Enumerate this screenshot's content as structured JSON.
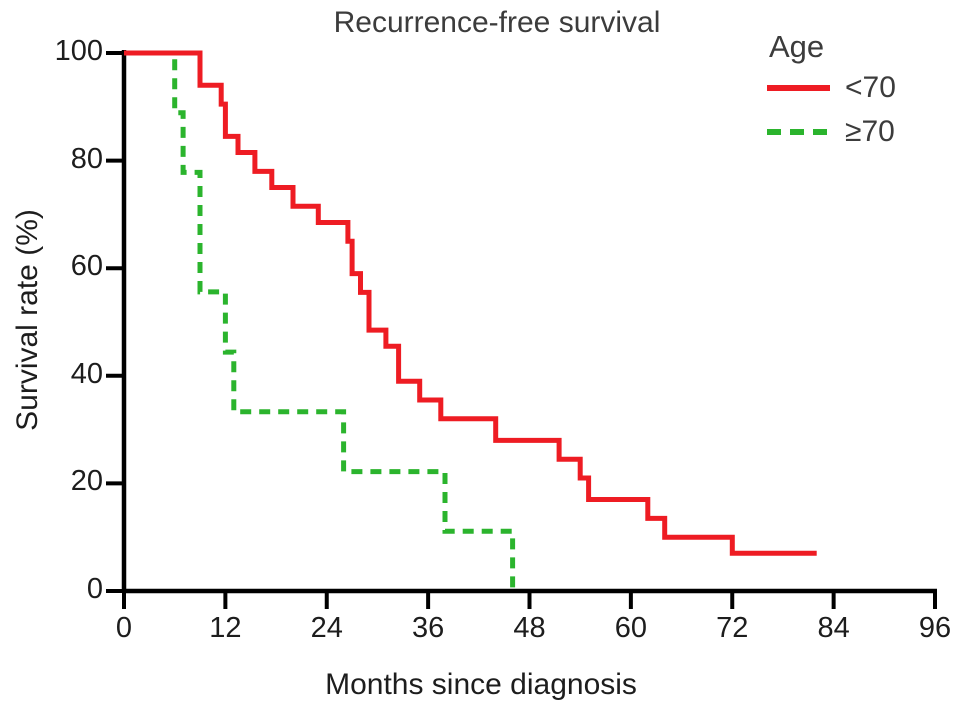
{
  "title": "Recurrence-free survival",
  "x_axis": {
    "label": "Months since diagnosis",
    "ticks": [
      0,
      12,
      24,
      36,
      48,
      60,
      72,
      84,
      96
    ],
    "min": 0,
    "max": 96
  },
  "y_axis": {
    "label": "Survival rate (%)",
    "ticks": [
      0,
      20,
      40,
      60,
      80,
      100
    ],
    "min": 0,
    "max": 100
  },
  "legend": {
    "title": "Age",
    "entries": [
      {
        "label": "<70",
        "color": "#ee1c23",
        "line_style": "solid"
      },
      {
        "label": "≥70",
        "color": "#2bb42d",
        "line_style": "dashed"
      }
    ]
  },
  "colors": {
    "axis": "#000000",
    "background": "#ffffff",
    "under70": "#ee1c23",
    "over70": "#2bb42d"
  },
  "chart_data": {
    "type": "line",
    "subtype": "kaplan-meier-step",
    "title": "Recurrence-free survival",
    "xlabel": "Months since diagnosis",
    "ylabel": "Survival rate (%)",
    "xlim": [
      0,
      96
    ],
    "ylim": [
      0,
      100
    ],
    "x_ticks": [
      0,
      12,
      24,
      36,
      48,
      60,
      72,
      84,
      96
    ],
    "y_ticks": [
      0,
      20,
      40,
      60,
      80,
      100
    ],
    "grid": false,
    "legend_position": "top-right",
    "legend_title": "Age",
    "series": [
      {
        "name": "<70",
        "color": "#ee1c23",
        "dash": "solid",
        "points": [
          [
            0,
            100
          ],
          [
            9,
            100
          ],
          [
            9,
            94
          ],
          [
            11.5,
            94
          ],
          [
            11.5,
            90.5
          ],
          [
            12,
            90.5
          ],
          [
            12,
            84.5
          ],
          [
            13.5,
            84.5
          ],
          [
            13.5,
            81.5
          ],
          [
            15.5,
            81.5
          ],
          [
            15.5,
            78
          ],
          [
            17.5,
            78
          ],
          [
            17.5,
            75
          ],
          [
            20,
            75
          ],
          [
            20,
            71.5
          ],
          [
            23,
            71.5
          ],
          [
            23,
            68.5
          ],
          [
            26.5,
            68.5
          ],
          [
            26.5,
            65
          ],
          [
            27,
            65
          ],
          [
            27,
            59
          ],
          [
            28,
            59
          ],
          [
            28,
            55.5
          ],
          [
            29,
            55.5
          ],
          [
            29,
            48.5
          ],
          [
            31,
            48.5
          ],
          [
            31,
            45.5
          ],
          [
            32.5,
            45.5
          ],
          [
            32.5,
            39
          ],
          [
            35,
            39
          ],
          [
            35,
            35.5
          ],
          [
            37.5,
            35.5
          ],
          [
            37.5,
            32
          ],
          [
            44,
            32
          ],
          [
            44,
            28
          ],
          [
            51.5,
            28
          ],
          [
            51.5,
            24.5
          ],
          [
            54,
            24.5
          ],
          [
            54,
            21
          ],
          [
            55,
            21
          ],
          [
            55,
            17
          ],
          [
            62,
            17
          ],
          [
            62,
            13.5
          ],
          [
            64,
            13.5
          ],
          [
            64,
            10
          ],
          [
            72,
            10
          ],
          [
            72,
            7
          ],
          [
            82,
            7
          ]
        ]
      },
      {
        "name": "≥70",
        "color": "#2bb42d",
        "dash": "dashed",
        "points": [
          [
            0,
            100
          ],
          [
            6,
            100
          ],
          [
            6,
            88.9
          ],
          [
            7,
            88.9
          ],
          [
            7,
            77.8
          ],
          [
            9,
            77.8
          ],
          [
            9,
            55.6
          ],
          [
            12,
            55.6
          ],
          [
            12,
            44.4
          ],
          [
            13,
            44.4
          ],
          [
            13,
            33.3
          ],
          [
            26,
            33.3
          ],
          [
            26,
            22.2
          ],
          [
            38,
            22.2
          ],
          [
            38,
            11.1
          ],
          [
            46,
            11.1
          ],
          [
            46,
            0
          ]
        ]
      }
    ]
  }
}
